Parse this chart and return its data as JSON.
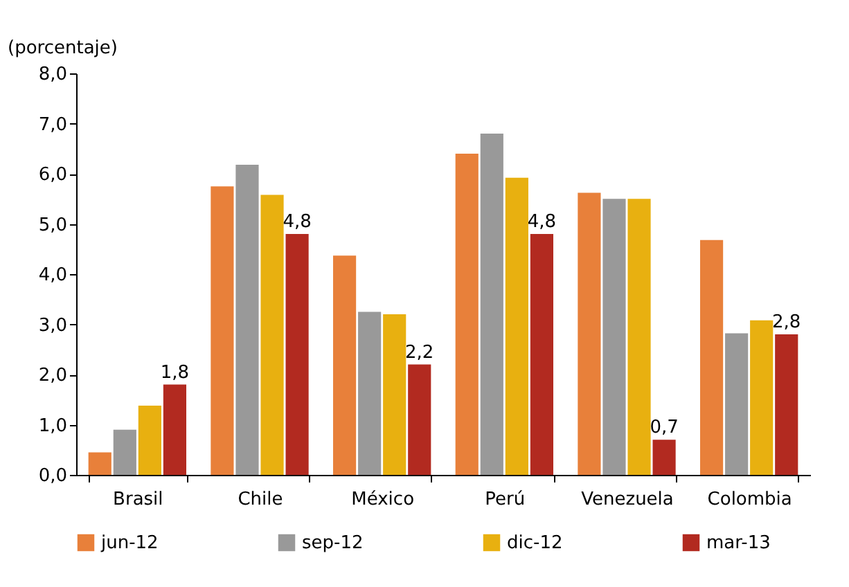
{
  "chart_data": {
    "type": "bar",
    "ylabel": "(porcentaje)",
    "categories": [
      "Brasil",
      "Chile",
      "México",
      "Perú",
      "Venezuela",
      "Colombia"
    ],
    "series": [
      {
        "name": "jun-12",
        "color": "#e8803a",
        "values": [
          0.45,
          5.75,
          4.37,
          6.4,
          5.62,
          4.68
        ]
      },
      {
        "name": "sep-12",
        "color": "#999999",
        "values": [
          0.9,
          6.18,
          3.25,
          6.8,
          5.5,
          2.82
        ]
      },
      {
        "name": "dic-12",
        "color": "#e8b010",
        "values": [
          1.38,
          5.58,
          3.2,
          5.92,
          5.5,
          3.08
        ]
      },
      {
        "name": "mar-13",
        "color": "#b22a20",
        "values": [
          1.8,
          4.8,
          2.2,
          4.8,
          0.7,
          2.8
        ],
        "value_labels": [
          "1,8",
          "4,8",
          "2,2",
          "4,8",
          "0,7",
          "2,8"
        ]
      }
    ],
    "ylim": [
      0,
      8
    ],
    "yticks": [
      {
        "value": 0,
        "label": "0,0"
      },
      {
        "value": 1,
        "label": "1,0"
      },
      {
        "value": 2,
        "label": "2,0"
      },
      {
        "value": 3,
        "label": "3,0"
      },
      {
        "value": 4,
        "label": "4,0"
      },
      {
        "value": 5,
        "label": "5,0"
      },
      {
        "value": 6,
        "label": "6,0"
      },
      {
        "value": 7,
        "label": "7,0"
      },
      {
        "value": 8,
        "label": "8,0"
      }
    ],
    "grid": false,
    "legend": "bottom"
  }
}
